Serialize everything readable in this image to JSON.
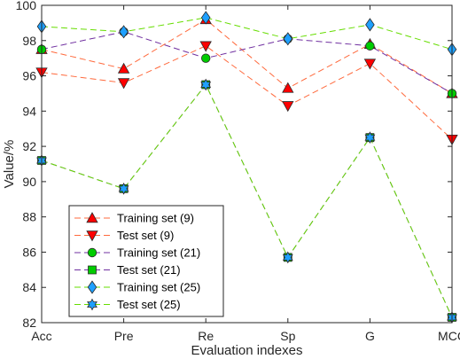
{
  "chart_data": {
    "type": "line",
    "categories": [
      "Acc",
      "Pre",
      "Re",
      "Sp",
      "G",
      "MCC"
    ],
    "xlabel": "Evaluation indexes",
    "ylabel": "Value/%",
    "ylim": [
      82,
      100
    ],
    "yticks": [
      82,
      84,
      86,
      88,
      90,
      92,
      94,
      96,
      98,
      100
    ],
    "grid": false,
    "legend_position": "lower-left",
    "series": [
      {
        "name": "Training set (9)",
        "color": "#ff0000",
        "line_color": "#ff6a3d",
        "marker": "triangle-up",
        "values": [
          97.5,
          96.4,
          99.2,
          95.3,
          97.8,
          95.0
        ]
      },
      {
        "name": "Test set (9)",
        "color": "#ff0000",
        "line_color": "#ff6a3d",
        "marker": "triangle-down",
        "values": [
          96.2,
          95.6,
          97.7,
          94.3,
          96.7,
          92.4
        ]
      },
      {
        "name": "Training set (21)",
        "color": "#00cc00",
        "line_color": "#7030a0",
        "marker": "circle",
        "values": [
          97.5,
          98.5,
          97.0,
          98.1,
          97.7,
          95.0
        ]
      },
      {
        "name": "Test set (21)",
        "color": "#00cc00",
        "line_color": "#7030a0",
        "marker": "square",
        "values": [
          91.2,
          89.6,
          95.5,
          85.7,
          92.5,
          82.3
        ]
      },
      {
        "name": "Training set (25)",
        "color": "#1ea0ff",
        "line_color": "#66dd00",
        "marker": "diamond",
        "values": [
          98.8,
          98.5,
          99.3,
          98.1,
          98.9,
          97.5
        ]
      },
      {
        "name": "Test set (25)",
        "color": "#1ea0ff",
        "line_color": "#66dd00",
        "marker": "hexagram",
        "values": [
          91.2,
          89.6,
          95.5,
          85.7,
          92.5,
          82.3
        ]
      }
    ]
  }
}
